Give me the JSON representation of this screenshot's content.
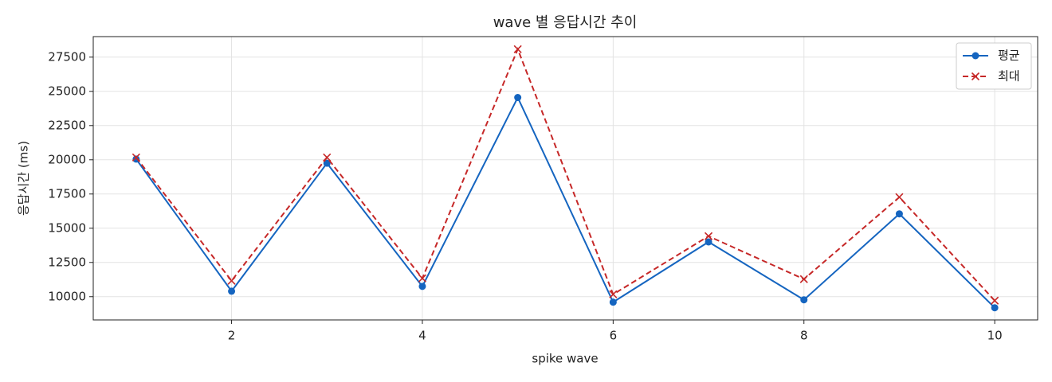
{
  "chart_data": {
    "type": "line",
    "title": "wave 별 응답시간 추이",
    "x_label": "spike wave",
    "y_label": "응답시간 (ms)",
    "x": [
      1,
      2,
      3,
      4,
      5,
      6,
      7,
      8,
      9,
      10
    ],
    "series": [
      {
        "name": "평균",
        "color": "#1565c0",
        "marker": "o",
        "linestyle": "solid",
        "values": [
          20050,
          10400,
          19750,
          10750,
          24550,
          9600,
          14000,
          9770,
          16050,
          9190
        ]
      },
      {
        "name": "최대",
        "color": "#c62828",
        "marker": "x",
        "linestyle": "dashed",
        "values": [
          20170,
          11160,
          20170,
          11340,
          28080,
          10170,
          14420,
          11280,
          17270,
          9710
        ]
      }
    ],
    "xlim": [
      0.55,
      10.45
    ],
    "xticks": [
      2,
      4,
      6,
      8,
      10
    ],
    "ylim": [
      8300,
      29000
    ],
    "yticks": [
      10000,
      12500,
      15000,
      17500,
      20000,
      22500,
      25000,
      27500
    ],
    "grid": true,
    "legend": "upper right"
  }
}
